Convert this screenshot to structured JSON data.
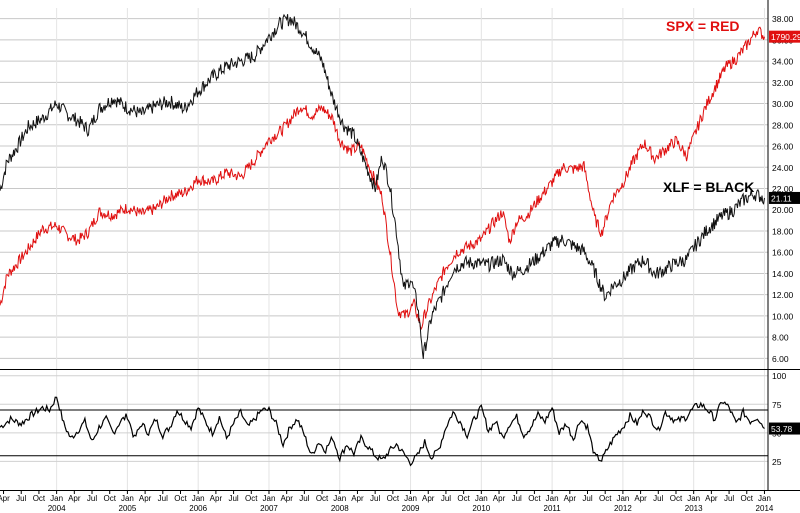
{
  "chart_data": [
    {
      "type": "line",
      "title": "",
      "xlabel": "",
      "ylabel": "",
      "ylim": [
        5,
        39
      ],
      "xlim": [
        2003.2,
        2014.05
      ],
      "grid": true,
      "legend": [
        {
          "text": "SPX = RED",
          "color": "#e01010",
          "position": "top-right"
        },
        {
          "text": "XLF = BLACK",
          "color": "#000000",
          "position": "right"
        }
      ],
      "y_ticks": [
        6,
        8,
        10,
        12,
        14,
        16,
        18,
        20,
        22,
        24,
        26,
        28,
        30,
        32,
        34,
        36,
        38
      ],
      "y_tick_labels": [
        "6.00",
        "8.00",
        "10.00",
        "12.00",
        "14.00",
        "16.00",
        "18.00",
        "20.00",
        "22.00",
        "24.00",
        "26.00",
        "28.00",
        "30.00",
        "32.00",
        "34.00",
        "36.00",
        "38.00"
      ],
      "last_value_labels": [
        {
          "series": "SPX",
          "text": "1790.29",
          "y": 36.3,
          "bg": "#e01010"
        },
        {
          "series": "XLF",
          "text": "21.11",
          "y": 21.11,
          "bg": "#000000"
        }
      ],
      "series": [
        {
          "name": "SPX",
          "color": "#e01010",
          "x": [
            2003.2,
            2003.3,
            2003.45,
            2003.6,
            2003.8,
            2004.0,
            2004.15,
            2004.3,
            2004.45,
            2004.6,
            2004.8,
            2005.0,
            2005.2,
            2005.4,
            2005.6,
            2005.8,
            2006.0,
            2006.2,
            2006.4,
            2006.6,
            2006.8,
            2007.0,
            2007.2,
            2007.45,
            2007.6,
            2007.75,
            2007.9,
            2008.0,
            2008.15,
            2008.3,
            2008.45,
            2008.6,
            2008.72,
            2008.82,
            2008.92,
            2009.05,
            2009.15,
            2009.2,
            2009.35,
            2009.5,
            2009.65,
            2009.8,
            2010.0,
            2010.15,
            2010.3,
            2010.4,
            2010.5,
            2010.65,
            2010.8,
            2011.0,
            2011.15,
            2011.3,
            2011.45,
            2011.6,
            2011.7,
            2011.85,
            2012.0,
            2012.15,
            2012.3,
            2012.45,
            2012.6,
            2012.75,
            2012.9,
            2013.0,
            2013.15,
            2013.3,
            2013.45,
            2013.6,
            2013.75,
            2013.9,
            2014.0
          ],
          "values": [
            11.0,
            13.8,
            15.0,
            16.3,
            18.2,
            18.5,
            17.6,
            17.1,
            17.9,
            19.8,
            19.5,
            20.2,
            19.6,
            20.1,
            21.3,
            21.6,
            22.9,
            22.6,
            23.5,
            23.1,
            24.7,
            26.6,
            27.6,
            29.8,
            28.9,
            29.6,
            28.6,
            26.5,
            25.5,
            26.0,
            23.5,
            21.2,
            15.5,
            10.5,
            10.0,
            11.1,
            8.9,
            10.1,
            12.5,
            14.6,
            16.0,
            16.5,
            17.2,
            18.6,
            19.8,
            17.0,
            18.9,
            19.5,
            20.9,
            22.6,
            24.0,
            23.8,
            24.1,
            19.2,
            17.8,
            21.1,
            22.5,
            24.6,
            26.3,
            24.8,
            25.7,
            26.5,
            25.1,
            26.8,
            29.4,
            31.5,
            33.4,
            34.2,
            35.5,
            37.0,
            36.3
          ]
        },
        {
          "name": "XLF",
          "color": "#111111",
          "x": [
            2003.2,
            2003.3,
            2003.45,
            2003.6,
            2003.8,
            2004.0,
            2004.15,
            2004.3,
            2004.45,
            2004.6,
            2004.8,
            2005.0,
            2005.2,
            2005.4,
            2005.6,
            2005.8,
            2006.0,
            2006.2,
            2006.4,
            2006.6,
            2006.8,
            2007.0,
            2007.15,
            2007.3,
            2007.45,
            2007.6,
            2007.75,
            2007.9,
            2008.05,
            2008.2,
            2008.35,
            2008.5,
            2008.6,
            2008.7,
            2008.8,
            2008.9,
            2009.0,
            2009.1,
            2009.18,
            2009.3,
            2009.45,
            2009.6,
            2009.75,
            2009.9,
            2010.1,
            2010.3,
            2010.45,
            2010.6,
            2010.8,
            2011.0,
            2011.15,
            2011.3,
            2011.45,
            2011.6,
            2011.75,
            2011.85,
            2012.0,
            2012.15,
            2012.3,
            2012.45,
            2012.6,
            2012.75,
            2012.9,
            2013.0,
            2013.2,
            2013.4,
            2013.55,
            2013.7,
            2013.85,
            2014.0
          ],
          "values": [
            21.8,
            24.5,
            26.0,
            27.8,
            28.6,
            30.0,
            29.0,
            28.4,
            27.5,
            29.5,
            30.5,
            29.6,
            29.0,
            29.8,
            30.2,
            29.5,
            31.2,
            32.5,
            33.5,
            34.0,
            34.5,
            36.3,
            37.5,
            38.0,
            37.0,
            35.5,
            34.0,
            30.5,
            28.0,
            27.0,
            24.5,
            22.0,
            25.0,
            22.5,
            18.0,
            12.5,
            13.5,
            11.0,
            6.2,
            10.0,
            12.0,
            14.4,
            15.0,
            15.0,
            14.8,
            15.3,
            14.0,
            14.4,
            15.5,
            16.8,
            17.2,
            16.6,
            16.1,
            14.2,
            11.8,
            12.8,
            13.5,
            14.6,
            15.3,
            13.9,
            14.4,
            15.0,
            15.3,
            16.4,
            18.2,
            19.4,
            19.9,
            20.9,
            21.5,
            21.11
          ]
        }
      ],
      "x_tick_labels": [
        {
          "x": 2003.25,
          "text": "Apr"
        },
        {
          "x": 2003.5,
          "text": "Jul"
        },
        {
          "x": 2003.75,
          "text": "Oct"
        },
        {
          "x": 2004.0,
          "text": "Jan"
        },
        {
          "x": 2004.25,
          "text": "Apr"
        },
        {
          "x": 2004.5,
          "text": "Jul"
        },
        {
          "x": 2004.75,
          "text": "Oct"
        },
        {
          "x": 2005.0,
          "text": "Jan"
        },
        {
          "x": 2005.25,
          "text": "Apr"
        },
        {
          "x": 2005.5,
          "text": "Jul"
        },
        {
          "x": 2005.75,
          "text": "Oct"
        },
        {
          "x": 2006.0,
          "text": "Jan"
        },
        {
          "x": 2006.25,
          "text": "Apr"
        },
        {
          "x": 2006.5,
          "text": "Jul"
        },
        {
          "x": 2006.75,
          "text": "Oct"
        },
        {
          "x": 2007.0,
          "text": "Jan"
        },
        {
          "x": 2007.25,
          "text": "Apr"
        },
        {
          "x": 2007.5,
          "text": "Jul"
        },
        {
          "x": 2007.75,
          "text": "Oct"
        },
        {
          "x": 2008.0,
          "text": "Jan"
        },
        {
          "x": 2008.25,
          "text": "Apr"
        },
        {
          "x": 2008.5,
          "text": "Jul"
        },
        {
          "x": 2008.75,
          "text": "Oct"
        },
        {
          "x": 2009.0,
          "text": "Jan"
        },
        {
          "x": 2009.25,
          "text": "Apr"
        },
        {
          "x": 2009.5,
          "text": "Jul"
        },
        {
          "x": 2009.75,
          "text": "Oct"
        },
        {
          "x": 2010.0,
          "text": "Jan"
        },
        {
          "x": 2010.25,
          "text": "Apr"
        },
        {
          "x": 2010.5,
          "text": "Jul"
        },
        {
          "x": 2010.75,
          "text": "Oct"
        },
        {
          "x": 2011.0,
          "text": "Jan"
        },
        {
          "x": 2011.25,
          "text": "Apr"
        },
        {
          "x": 2011.5,
          "text": "Jul"
        },
        {
          "x": 2011.75,
          "text": "Oct"
        },
        {
          "x": 2012.0,
          "text": "Jan"
        },
        {
          "x": 2012.25,
          "text": "Apr"
        },
        {
          "x": 2012.5,
          "text": "Jul"
        },
        {
          "x": 2012.75,
          "text": "Oct"
        },
        {
          "x": 2013.0,
          "text": "Jan"
        },
        {
          "x": 2013.25,
          "text": "Apr"
        },
        {
          "x": 2013.5,
          "text": "Jul"
        },
        {
          "x": 2013.75,
          "text": "Oct"
        },
        {
          "x": 2014.0,
          "text": "Jan"
        }
      ],
      "x_year_labels": [
        {
          "x": 2004.0,
          "text": "2004"
        },
        {
          "x": 2005.0,
          "text": "2005"
        },
        {
          "x": 2006.0,
          "text": "2006"
        },
        {
          "x": 2007.0,
          "text": "2007"
        },
        {
          "x": 2008.0,
          "text": "2008"
        },
        {
          "x": 2009.0,
          "text": "2009"
        },
        {
          "x": 2010.0,
          "text": "2010"
        },
        {
          "x": 2011.0,
          "text": "2011"
        },
        {
          "x": 2012.0,
          "text": "2012"
        },
        {
          "x": 2013.0,
          "text": "2013"
        },
        {
          "x": 2014.0,
          "text": "2014"
        }
      ]
    },
    {
      "type": "line",
      "title": "",
      "ylim": [
        0,
        105
      ],
      "y_ticks": [
        25,
        50,
        75,
        100
      ],
      "y_tick_labels": [
        "25",
        "50",
        "75",
        "100"
      ],
      "reference_lines": [
        30,
        70
      ],
      "last_value_label": {
        "text": "53.78",
        "y": 53.78,
        "bg": "#000000"
      },
      "series": [
        {
          "name": "",
          "color": "#000000",
          "x": [
            2003.2,
            2003.35,
            2003.5,
            2003.65,
            2003.8,
            2003.9,
            2004.0,
            2004.1,
            2004.2,
            2004.3,
            2004.4,
            2004.5,
            2004.6,
            2004.7,
            2004.8,
            2004.9,
            2005.0,
            2005.1,
            2005.2,
            2005.3,
            2005.4,
            2005.5,
            2005.6,
            2005.7,
            2005.8,
            2005.9,
            2006.0,
            2006.1,
            2006.2,
            2006.3,
            2006.4,
            2006.5,
            2006.6,
            2006.7,
            2006.8,
            2006.9,
            2007.0,
            2007.1,
            2007.2,
            2007.3,
            2007.4,
            2007.5,
            2007.6,
            2007.7,
            2007.8,
            2007.9,
            2008.0,
            2008.1,
            2008.2,
            2008.3,
            2008.4,
            2008.5,
            2008.6,
            2008.7,
            2008.8,
            2008.9,
            2009.0,
            2009.1,
            2009.2,
            2009.3,
            2009.4,
            2009.5,
            2009.6,
            2009.7,
            2009.8,
            2009.9,
            2010.0,
            2010.1,
            2010.2,
            2010.3,
            2010.4,
            2010.5,
            2010.6,
            2010.7,
            2010.8,
            2010.9,
            2011.0,
            2011.1,
            2011.2,
            2011.3,
            2011.4,
            2011.5,
            2011.6,
            2011.7,
            2011.8,
            2011.9,
            2012.0,
            2012.1,
            2012.2,
            2012.3,
            2012.4,
            2012.5,
            2012.6,
            2012.75,
            2012.9,
            2013.0,
            2013.1,
            2013.2,
            2013.3,
            2013.4,
            2013.5,
            2013.6,
            2013.7,
            2013.8,
            2013.9,
            2014.0
          ],
          "values": [
            55,
            62,
            58,
            66,
            72,
            70,
            82,
            58,
            45,
            52,
            60,
            42,
            55,
            62,
            50,
            60,
            65,
            45,
            58,
            50,
            62,
            48,
            55,
            70,
            62,
            55,
            72,
            60,
            50,
            64,
            45,
            58,
            68,
            55,
            62,
            70,
            70,
            58,
            40,
            55,
            62,
            48,
            30,
            42,
            35,
            46,
            28,
            40,
            32,
            45,
            38,
            30,
            26,
            34,
            40,
            32,
            24,
            30,
            42,
            28,
            36,
            55,
            68,
            60,
            48,
            62,
            72,
            52,
            60,
            46,
            58,
            64,
            48,
            55,
            66,
            60,
            72,
            50,
            58,
            45,
            62,
            55,
            30,
            26,
            38,
            48,
            55,
            65,
            58,
            70,
            62,
            52,
            68,
            60,
            64,
            72,
            75,
            70,
            62,
            78,
            72,
            58,
            68,
            60,
            64,
            53.78
          ]
        }
      ]
    }
  ]
}
